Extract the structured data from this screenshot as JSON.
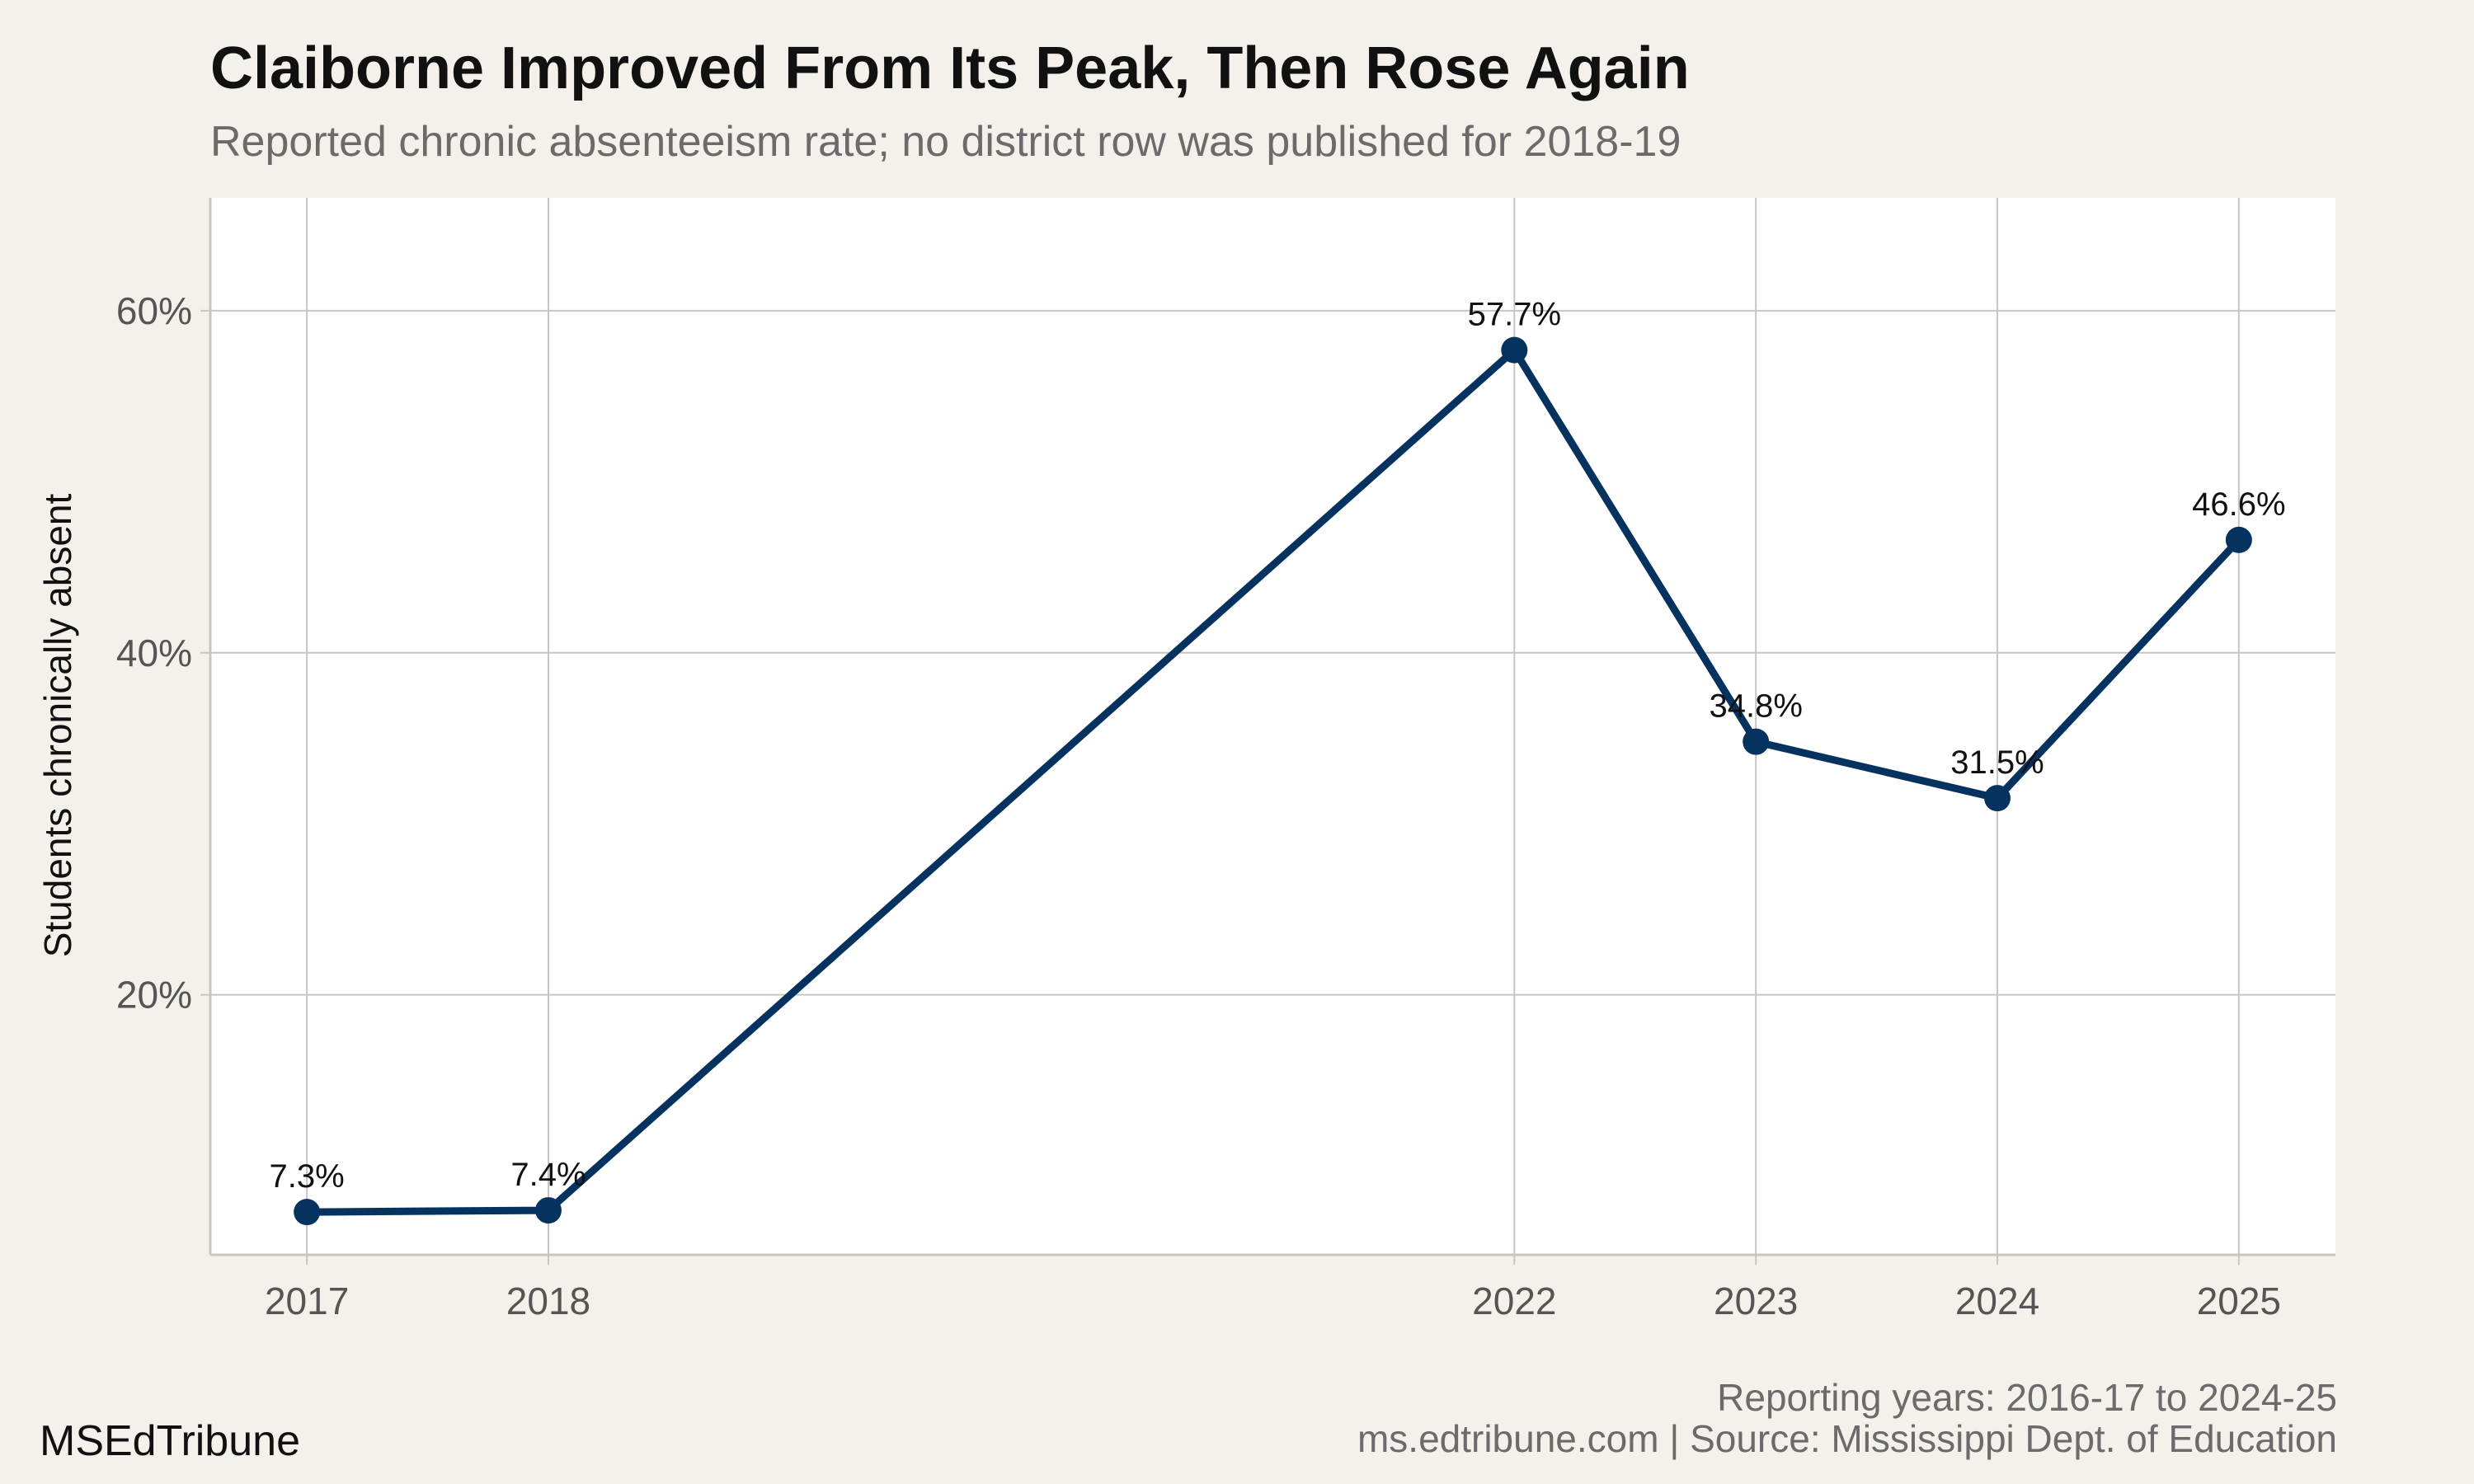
{
  "title": "Claiborne Improved From Its Peak, Then Rose Again",
  "subtitle": "Reported chronic absenteeism rate; no district row was published for 2018-19",
  "footer": {
    "note": "Reporting years: 2016-17 to 2024-25",
    "source": "ms.edtribune.com | Source: Mississippi Dept. of Education",
    "brand": "MSEdTribune"
  },
  "colors": {
    "line": "#06325f",
    "background": "#f4f1ec",
    "panel": "#ffffff",
    "grid": "#c8c6c0"
  },
  "chart_data": {
    "type": "line",
    "ylabel": "Students chronically absent",
    "x": [
      2017,
      2018,
      2022,
      2023,
      2024,
      2025
    ],
    "y": [
      7.3,
      7.4,
      57.7,
      34.8,
      31.5,
      46.6
    ],
    "labels": [
      "7.3%",
      "7.4%",
      "57.7%",
      "34.8%",
      "31.5%",
      "46.6%"
    ],
    "xticks": [
      2017,
      2018,
      2022,
      2023,
      2024,
      2025
    ],
    "yticks": [
      20,
      40,
      60
    ],
    "ytick_labels": [
      "20%",
      "40%",
      "60%"
    ],
    "xlim": [
      2016.6,
      2025.4
    ],
    "ylim": [
      4.8,
      66.6
    ],
    "grid": true,
    "legend": "none"
  }
}
